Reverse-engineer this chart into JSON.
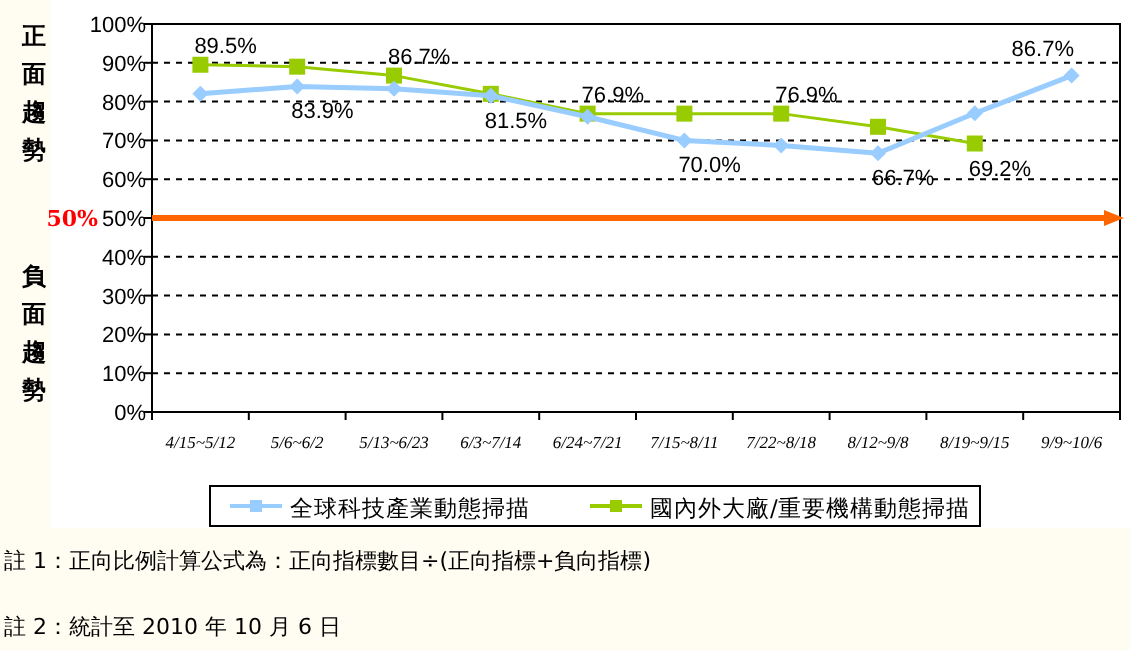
{
  "chart_data": {
    "type": "line",
    "categories": [
      "4/15~5/12",
      "5/6~6/2",
      "5/13~6/23",
      "6/3~7/14",
      "6/24~7/21",
      "7/15~8/11",
      "7/22~8/18",
      "8/12~9/8",
      "8/19~9/15",
      "9/9~10/6"
    ],
    "series": [
      {
        "name": "全球科技產業動態掃描",
        "color": "#99ccff",
        "marker": "diamond",
        "values": [
          82,
          83.9,
          83.3,
          81.5,
          76.1,
          70.0,
          68.7,
          66.7,
          77,
          86.7
        ],
        "value_labels": [
          null,
          "83.9%",
          null,
          "81.5%",
          null,
          "70.0%",
          null,
          "66.7%",
          null,
          "86.7%"
        ]
      },
      {
        "name": "國內外大廠/重要機構動態掃描",
        "color": "#99cc00",
        "marker": "square",
        "values": [
          89.5,
          89.0,
          86.7,
          82,
          76.9,
          76.9,
          76.9,
          73.5,
          69.2,
          null
        ],
        "value_labels": [
          "89.5%",
          null,
          "86.7%",
          null,
          "76.9%",
          null,
          "76.9%",
          null,
          "69.2%",
          null
        ]
      }
    ],
    "ylim": [
      0,
      100
    ],
    "yticks": [
      {
        "value": 0,
        "label": "0%"
      },
      {
        "value": 10,
        "label": "10%"
      },
      {
        "value": 20,
        "label": "20%"
      },
      {
        "value": 30,
        "label": "30%"
      },
      {
        "value": 40,
        "label": "40%"
      },
      {
        "value": 50,
        "label": "50%"
      },
      {
        "value": 60,
        "label": "60%"
      },
      {
        "value": 70,
        "label": "70%"
      },
      {
        "value": 80,
        "label": "80%"
      },
      {
        "value": 90,
        "label": "90%"
      },
      {
        "value": 100,
        "label": "100%"
      }
    ],
    "grid": "y",
    "legend": "bottom",
    "ref_lines": [
      {
        "axis": "y",
        "value": 50,
        "label": "50%",
        "color": "#ff6600"
      }
    ],
    "annotations": [
      "正面趨勢",
      "負面趨勢",
      "註 1：正向比例計算公式為：正向指標數目÷(正向指標+負向指標)",
      "註 2：統計至 2010 年 10 月 6 日"
    ]
  }
}
